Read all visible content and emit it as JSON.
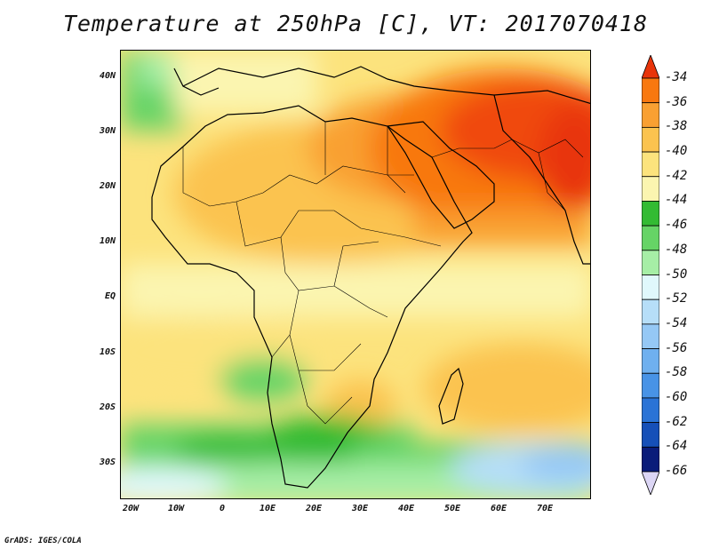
{
  "title": "Temperature at 250hPa [C], VT: 2017070418",
  "credit": "GrADS: IGES/COLA",
  "map": {
    "lat_labels": [
      "40N",
      "30N",
      "20N",
      "10N",
      "EQ",
      "10S",
      "20S",
      "30S"
    ],
    "lon_labels": [
      "20W",
      "10W",
      "0",
      "10E",
      "20E",
      "30E",
      "40E",
      "50E",
      "60E",
      "70E"
    ],
    "region": "Africa and Middle East",
    "land_outline_color": "#000000"
  },
  "colorbar": {
    "labels": [
      "-34",
      "-36",
      "-38",
      "-40",
      "-42",
      "-44",
      "-46",
      "-48",
      "-50",
      "-52",
      "-54",
      "-56",
      "-58",
      "-60",
      "-62",
      "-64",
      "-66"
    ],
    "colors": [
      "#f0480c",
      "#f8780f",
      "#f9a032",
      "#fbc34f",
      "#fce37d",
      "#fbf5b0",
      "#33bb33",
      "#66d466",
      "#a6eea6",
      "#e0f8fc",
      "#b6def8",
      "#95c8f5",
      "#6fb0ef",
      "#4893e6",
      "#2a73d6",
      "#1650b8",
      "#0a1c7a"
    ],
    "top_arrow_color": "#e8340a",
    "bottom_arrow_color": "#dcd6f5"
  }
}
